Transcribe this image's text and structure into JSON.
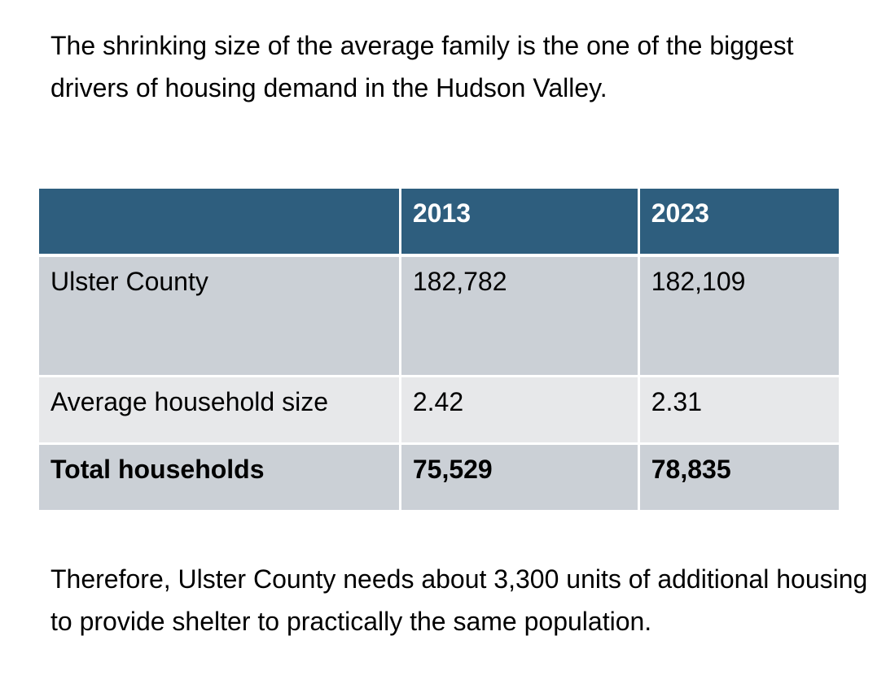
{
  "intro_text": "The shrinking size of the average family is the one of the biggest drivers of housing demand in the Hudson Valley.",
  "table": {
    "header_color": "#2e5e7e",
    "row_dark_color": "#cbd0d6",
    "row_light_color": "#e7e8ea",
    "columns": [
      "",
      "2013",
      "2023"
    ],
    "rows": [
      {
        "label": "Ulster County",
        "v2013": "182,782",
        "v2023": "182,109",
        "bold": false
      },
      {
        "label": "Average household size",
        "v2013": "2.42",
        "v2023": "2.31",
        "bold": false
      },
      {
        "label": "Total households",
        "v2013": "75,529",
        "v2023": "78,835",
        "bold": true
      }
    ]
  },
  "outro_text": "Therefore, Ulster County needs about 3,300 units of additional housing to provide shelter to practically the same population."
}
